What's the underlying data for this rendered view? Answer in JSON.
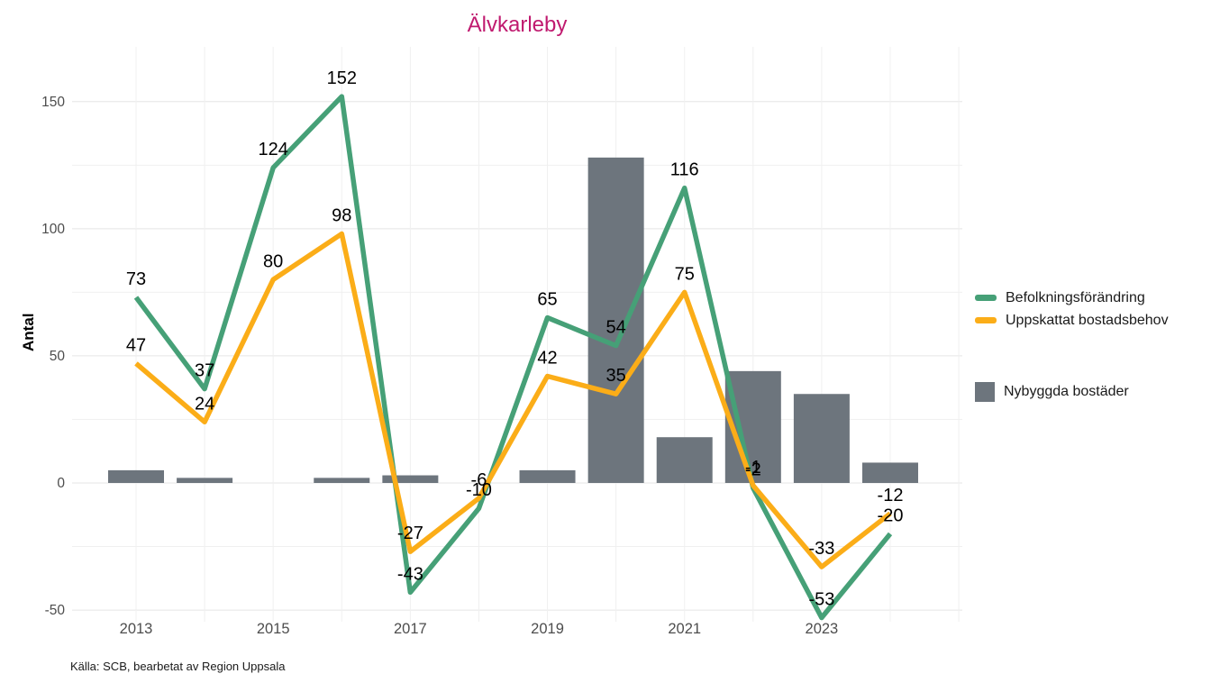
{
  "title": "Älvkarleby",
  "source": "Källa: SCB, bearbetat av Region Uppsala",
  "colors": {
    "title": "#C01A6F",
    "population_line": "#46A077",
    "housing_line": "#FBAD18",
    "bar": "#6D757D",
    "axis_text": "#4D4D4D",
    "value_label": "#000000",
    "grid_major": "#E5E5E5",
    "grid_minor": "#F0F0F0"
  },
  "legend": {
    "line_items": [
      {
        "label": "Befolkningsförändring",
        "series": "population"
      },
      {
        "label": "Uppskattat bostadsbehov",
        "series": "housing"
      }
    ],
    "bar_item": {
      "label": "Nybyggda bostäder",
      "series": "newbuilt"
    }
  },
  "chart_data": {
    "type": "bar+line",
    "title": "Älvkarleby",
    "xlabel": "",
    "ylabel": "Antal",
    "x": [
      2013,
      2014,
      2015,
      2016,
      2017,
      2018,
      2019,
      2020,
      2021,
      2022,
      2023,
      2024
    ],
    "x_tick_labels": [
      2013,
      2015,
      2017,
      2019,
      2021,
      2023
    ],
    "y_ticks": [
      -50,
      0,
      50,
      100,
      150
    ],
    "y_minor_ticks": [
      -25,
      25,
      75,
      125
    ],
    "ylim": [
      -58,
      172
    ],
    "grid": "on",
    "legend_position": "right",
    "series": [
      {
        "name": "Befolkningsförändring",
        "type": "line",
        "color_key": "population_line",
        "values": [
          73,
          37,
          124,
          152,
          -43,
          -10,
          65,
          54,
          116,
          -2,
          -53,
          -20
        ]
      },
      {
        "name": "Uppskattat bostadsbehov",
        "type": "line",
        "color_key": "housing_line",
        "values": [
          47,
          24,
          80,
          98,
          -27,
          -6,
          42,
          35,
          75,
          -1,
          -33,
          -12
        ]
      },
      {
        "name": "Nybyggda bostäder",
        "type": "bar",
        "color_key": "bar",
        "values": [
          5,
          2,
          0,
          2,
          3,
          0,
          5,
          128,
          18,
          44,
          35,
          8
        ]
      }
    ]
  }
}
